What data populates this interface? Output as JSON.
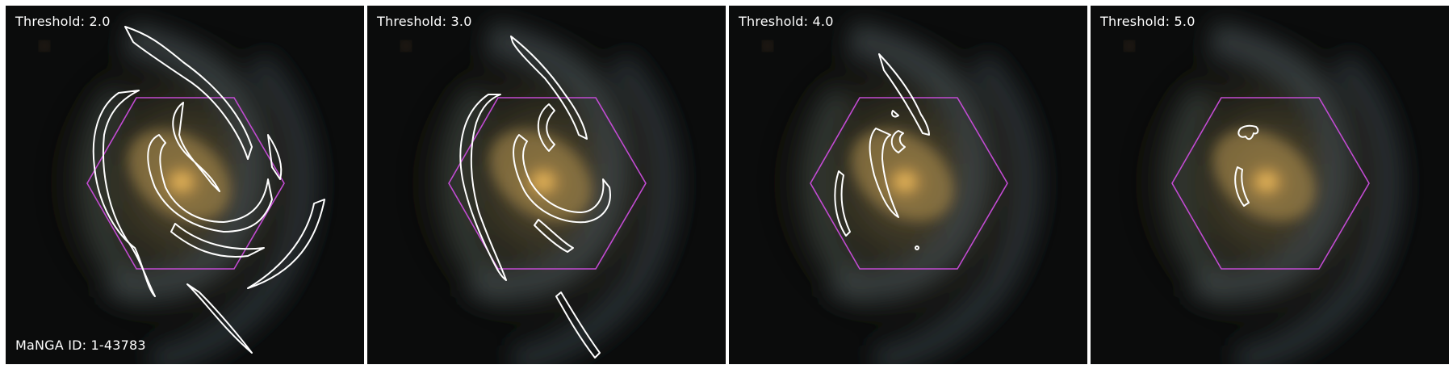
{
  "panels": [
    {
      "threshold_label": "Threshold: 2.0"
    },
    {
      "threshold_label": "Threshold: 3.0"
    },
    {
      "threshold_label": "Threshold: 4.0"
    },
    {
      "threshold_label": "Threshold: 5.0"
    }
  ],
  "manga_id": "MaNGA ID: 1-43783",
  "colors": {
    "hexagon": "#c24bd2",
    "contour": "#ffffff",
    "background": "#ffffff"
  }
}
